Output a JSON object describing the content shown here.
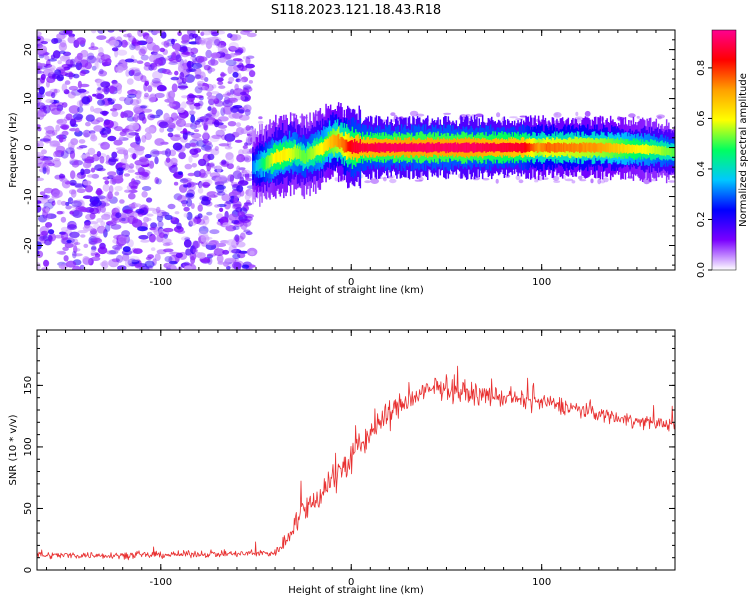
{
  "figure_title": "S118.2023.121.18.43.R18",
  "colors": {
    "snr_line": "#e83030",
    "axes": "#000000"
  },
  "chart_data": [
    {
      "type": "heatmap",
      "title": "",
      "xlabel": "Height of straight line (km)",
      "ylabel": "Frequency (Hz)",
      "xlim": [
        -165,
        170
      ],
      "ylim": [
        -25,
        24
      ],
      "xticks": [
        -100,
        0,
        100
      ],
      "yticks": [
        -20,
        -10,
        0,
        10,
        20
      ],
      "colorbar": {
        "label": "Normalized spectral amplitude",
        "range": [
          0.0,
          0.95
        ],
        "ticks": [
          0.0,
          0.2,
          0.4,
          0.6,
          0.8
        ],
        "colormap": [
          "#ffffff",
          "#7a00ff",
          "#0000ff",
          "#00c8ff",
          "#00ff60",
          "#ffff00",
          "#ffa000",
          "#ff0000",
          "#ff0090"
        ]
      },
      "noise_region_x": [
        -165,
        -52
      ],
      "signal_track": {
        "x": [
          -52,
          -45,
          -40,
          -35,
          -30,
          -25,
          -20,
          -15,
          -12,
          -8,
          -4,
          0,
          10,
          30,
          60,
          90,
          98,
          102,
          130,
          160,
          170
        ],
        "freq": [
          -4,
          -3,
          -2,
          -1.5,
          -1,
          -2,
          -1,
          0,
          1,
          1.5,
          0.5,
          0,
          0,
          0,
          0,
          0,
          0,
          0,
          0,
          -0.5,
          -1
        ],
        "amplitude": [
          0.3,
          0.5,
          0.6,
          0.6,
          0.55,
          0.5,
          0.55,
          0.6,
          0.65,
          0.7,
          0.75,
          0.85,
          0.88,
          0.9,
          0.9,
          0.85,
          0.7,
          0.75,
          0.7,
          0.55,
          0.5
        ]
      }
    },
    {
      "type": "line",
      "title": "",
      "xlabel": "Height of straight line (km)",
      "ylabel": "SNR (10 * v/v)",
      "xlim": [
        -165,
        170
      ],
      "ylim": [
        0,
        195
      ],
      "xticks": [
        -100,
        0,
        100
      ],
      "yticks": [
        0,
        50,
        100,
        150
      ],
      "series": [
        {
          "x": [
            -165,
            -140,
            -110,
            -80,
            -60,
            -40,
            -35,
            -30,
            -20,
            -10,
            0,
            10,
            20,
            30,
            40,
            48,
            55,
            70,
            90,
            110,
            130,
            150,
            170
          ],
          "y": [
            12,
            12,
            12,
            13,
            13,
            14,
            22,
            38,
            55,
            75,
            90,
            112,
            128,
            138,
            145,
            150,
            145,
            142,
            138,
            134,
            127,
            121,
            118
          ],
          "noise": [
            4,
            4,
            4,
            4,
            4,
            5,
            10,
            14,
            18,
            20,
            20,
            18,
            16,
            14,
            14,
            16,
            12,
            12,
            10,
            10,
            9,
            8,
            7
          ]
        }
      ]
    }
  ]
}
